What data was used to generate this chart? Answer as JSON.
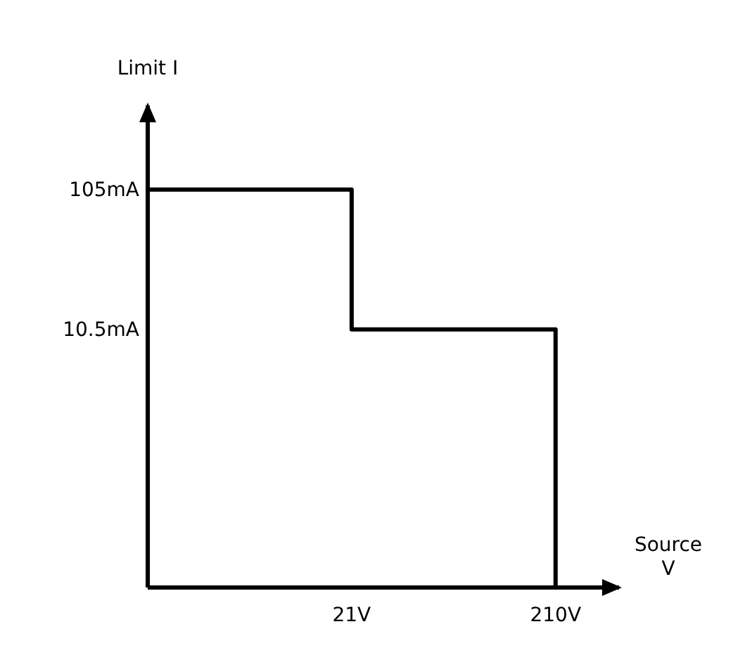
{
  "chart_data": {
    "type": "step",
    "xlabel": "Source V",
    "ylabel": "Limit I",
    "log": "xy",
    "x": [
      2.1,
      21,
      210
    ],
    "values": [
      105,
      10.5,
      0.15
    ],
    "color": "#000000",
    "xlim": [
      2.1,
      430
    ],
    "ylim": [
      0.15,
      420
    ],
    "xticks": [
      {
        "value": 21,
        "label": "21V"
      },
      {
        "value": 210,
        "label": "210V"
      }
    ],
    "yticks": [
      {
        "value": 10.5,
        "label": "10.5mA"
      },
      {
        "value": 105,
        "label": "105mA"
      }
    ],
    "grid": false,
    "marker": "none",
    "line_style": "solid"
  }
}
